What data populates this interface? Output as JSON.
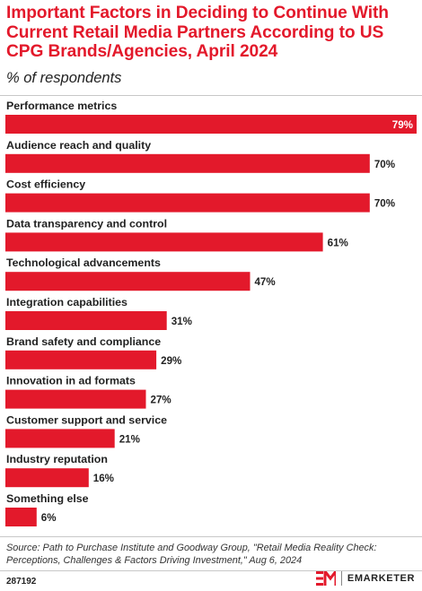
{
  "title": "Important Factors in Deciding to Continue With Current Retail Media Partners According to US CPG Brands/Agencies, April 2024",
  "subtitle": "% of respondents",
  "colors": {
    "accent": "#e3192b",
    "bar": "#e3192b"
  },
  "chart_data": {
    "type": "bar",
    "orientation": "horizontal",
    "categories": [
      "Performance metrics",
      "Audience reach and quality",
      "Cost efficiency",
      "Data transparency and control",
      "Technological advancements",
      "Integration capabilities",
      "Brand safety and compliance",
      "Innovation in ad formats",
      "Customer support and service",
      "Industry reputation",
      "Something else"
    ],
    "values": [
      79,
      70,
      70,
      61,
      47,
      31,
      29,
      27,
      21,
      16,
      6
    ],
    "value_labels": [
      "79%",
      "70%",
      "70%",
      "61%",
      "47%",
      "31%",
      "29%",
      "27%",
      "21%",
      "16%",
      "6%"
    ],
    "unit": "%",
    "xlim": [
      0,
      79
    ],
    "grid": false,
    "legend": "none"
  },
  "footer": {
    "source": "Source: Path to Purchase Institute and Goodway Group, \"Retail Media Reality Check: Perceptions, Challenges & Factors Driving Investment,\" Aug 6, 2024",
    "chart_id": "287192",
    "brand": "EMARKETER",
    "brand_icon": "emarketer-logo-icon"
  }
}
